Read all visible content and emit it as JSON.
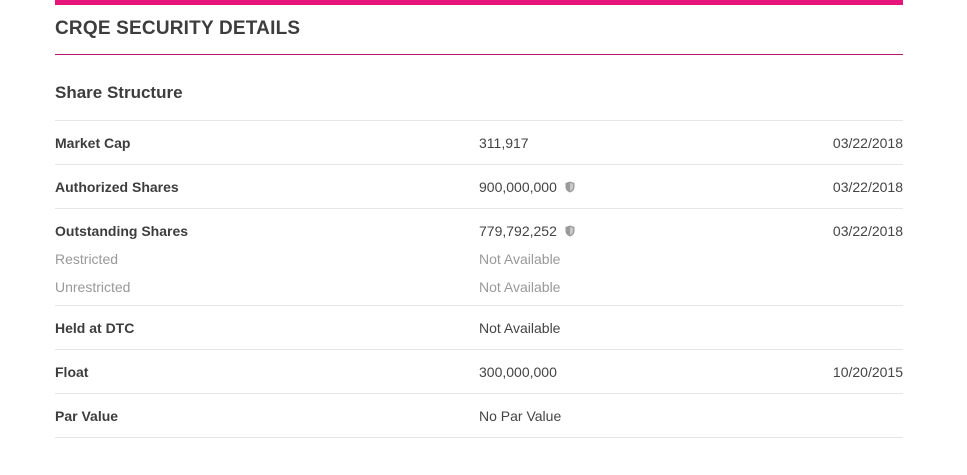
{
  "header": {
    "title": "CRQE SECURITY DETAILS",
    "accent_color": "#e5157a"
  },
  "section": {
    "title": "Share Structure"
  },
  "rows": [
    {
      "label": "Market Cap",
      "value": "311,917",
      "date": "03/22/2018",
      "verified_icon": false
    },
    {
      "label": "Authorized Shares",
      "value": "900,000,000",
      "date": "03/22/2018",
      "verified_icon": true
    },
    {
      "label": "Outstanding Shares",
      "value": "779,792,252",
      "date": "03/22/2018",
      "verified_icon": true,
      "sub": [
        {
          "label": "Restricted",
          "value": "Not Available"
        },
        {
          "label": "Unrestricted",
          "value": "Not Available"
        }
      ]
    },
    {
      "label": "Held at DTC",
      "value": "Not Available",
      "date": "",
      "verified_icon": false
    },
    {
      "label": "Float",
      "value": "300,000,000",
      "date": "10/20/2015",
      "verified_icon": false
    },
    {
      "label": "Par Value",
      "value": "No Par Value",
      "date": "",
      "verified_icon": false
    }
  ],
  "icons": {
    "verified": "shield-icon"
  }
}
